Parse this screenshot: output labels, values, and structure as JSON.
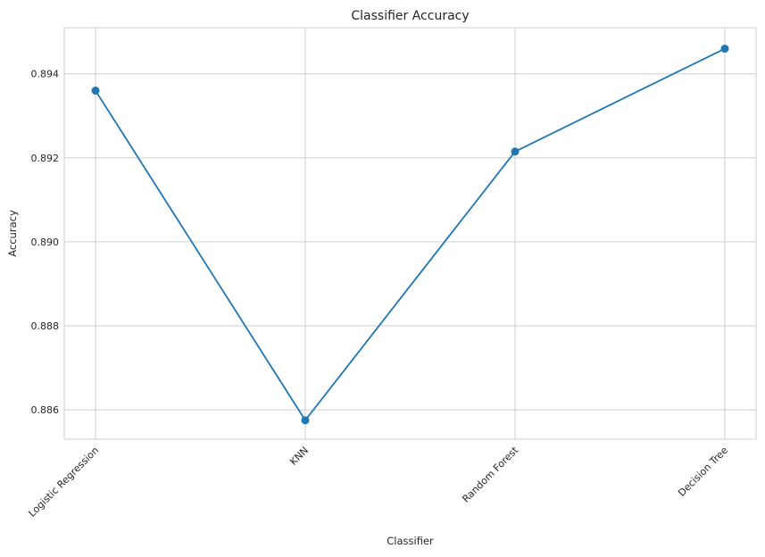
{
  "chart_data": {
    "type": "line",
    "title": "Classifier Accuracy",
    "xlabel": "Classifier",
    "ylabel": "Accuracy",
    "categories": [
      "Logistic Regression",
      "KNN",
      "Random Forest",
      "Decision Tree"
    ],
    "series": [
      {
        "values": [
          0.8936,
          0.88575,
          0.89215,
          0.8946
        ],
        "color": "#1f77b4",
        "marker": "circle"
      }
    ],
    "ylim": [
      0.8853,
      0.8951
    ],
    "yticks": [
      "0.886",
      "0.888",
      "0.890",
      "0.892",
      "0.894"
    ],
    "ytick_values": [
      0.886,
      0.888,
      0.89,
      0.892,
      0.894
    ],
    "grid": true,
    "style": "whitegrid",
    "xtick_rotation_deg": 45
  }
}
